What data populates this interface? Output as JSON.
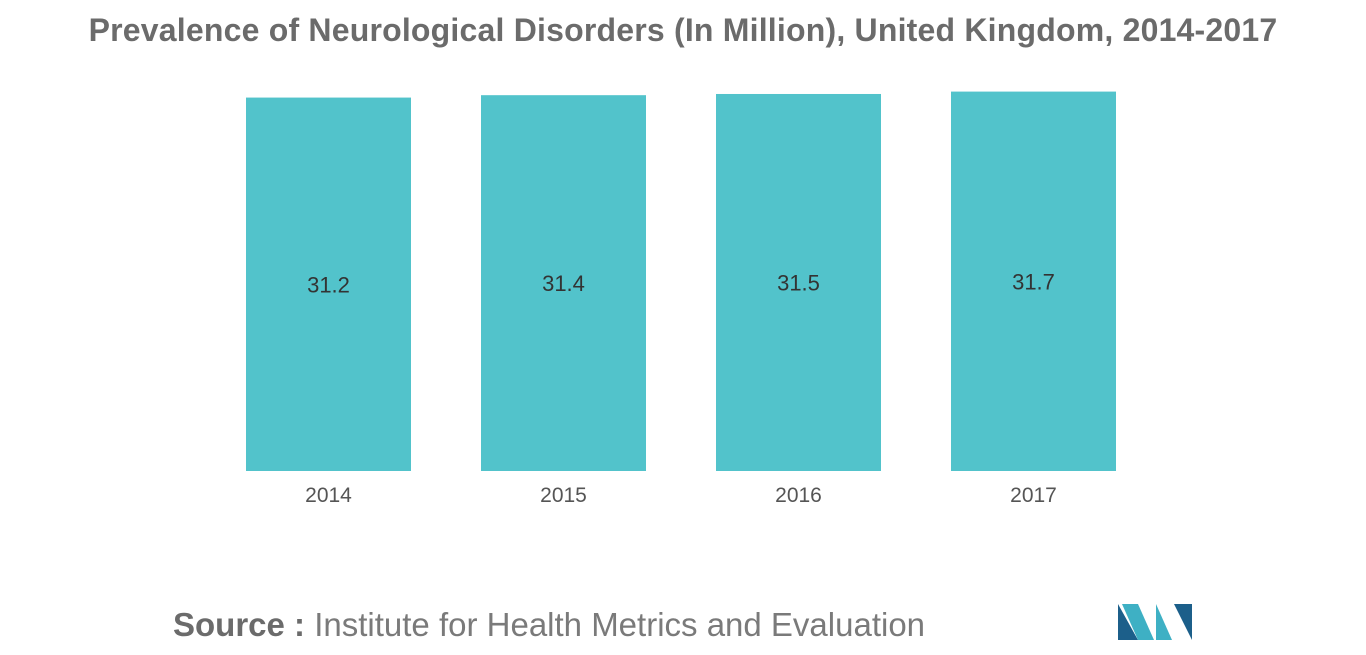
{
  "chart_data": {
    "type": "bar",
    "title": "Prevalence of Neurological Disorders (In Million), United Kingdom, 2014-2017",
    "categories": [
      "2014",
      "2015",
      "2016",
      "2017"
    ],
    "values": [
      31.2,
      31.4,
      31.5,
      31.7
    ],
    "data_labels": [
      "31.2",
      "31.4",
      "31.5",
      "31.7"
    ],
    "xlabel": "",
    "ylabel": "",
    "ylim": [
      0,
      32
    ],
    "grid": false,
    "legend": "none",
    "colors": {
      "bar": "#52c3cb",
      "label": "#333333",
      "tick": "#555555"
    }
  },
  "source": {
    "label": "Source :",
    "text": "Institute for Health Metrics and Evaluation"
  },
  "logo": {
    "icon": "mordor-intelligence-logo-icon",
    "colors": [
      "#1c5f8a",
      "#3eb0c4"
    ]
  }
}
